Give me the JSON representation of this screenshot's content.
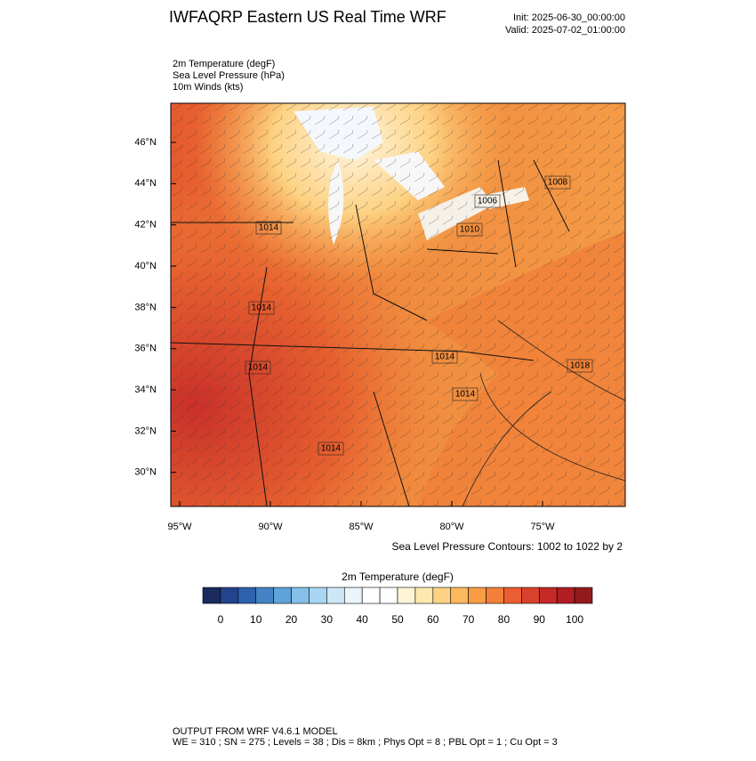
{
  "header": {
    "title": "IWFAQRP Eastern US Real Time WRF",
    "init": "Init: 2025-06-30_00:00:00",
    "valid": "Valid: 2025-07-02_01:00:00"
  },
  "fields": [
    "2m Temperature   (degF)",
    "Sea Level Pressure   (hPa)",
    "10m Winds   (kts)"
  ],
  "map": {
    "lat_ticks": [
      {
        "value": 46,
        "label": "46°N"
      },
      {
        "value": 44,
        "label": "44°N"
      },
      {
        "value": 42,
        "label": "42°N"
      },
      {
        "value": 40,
        "label": "40°N"
      },
      {
        "value": 38,
        "label": "38°N"
      },
      {
        "value": 36,
        "label": "36°N"
      },
      {
        "value": 34,
        "label": "34°N"
      },
      {
        "value": 32,
        "label": "32°N"
      },
      {
        "value": 30,
        "label": "30°N"
      }
    ],
    "lon_ticks": [
      {
        "value": -95,
        "label": "95°W"
      },
      {
        "value": -90,
        "label": "90°W"
      },
      {
        "value": -85,
        "label": "85°W"
      },
      {
        "value": -80,
        "label": "80°W"
      },
      {
        "value": -75,
        "label": "75°W"
      }
    ],
    "contour_labels": [
      "1006",
      "1008",
      "1010",
      "1014",
      "1014",
      "1014",
      "1014",
      "1014",
      "1014",
      "1018"
    ]
  },
  "contour_note": "Sea Level Pressure Contours: 1002 to 1022 by 2",
  "colorbar": {
    "title": "2m Temperature  (degF)",
    "colors": [
      "#1a2b5e",
      "#23438c",
      "#2f62ad",
      "#4484c6",
      "#5ea3d9",
      "#86c0e8",
      "#a9d6f2",
      "#cde7f7",
      "#e9f4fb",
      "#ffffff",
      "#ffffff",
      "#fff4d6",
      "#fee8b0",
      "#fdd383",
      "#fbb85c",
      "#f99c45",
      "#f47f38",
      "#ea5e31",
      "#d9412c",
      "#c42a27",
      "#b01d22",
      "#931a1c"
    ],
    "ticks": [
      0,
      10,
      20,
      30,
      40,
      50,
      60,
      70,
      80,
      90,
      100
    ]
  },
  "footer": [
    "OUTPUT FROM WRF V4.6.1 MODEL",
    "WE = 310 ; SN = 275 ; Levels = 38 ; Dis = 8km ; Phys Opt = 8 ; PBL Opt = 1 ; Cu Opt = 3"
  ]
}
